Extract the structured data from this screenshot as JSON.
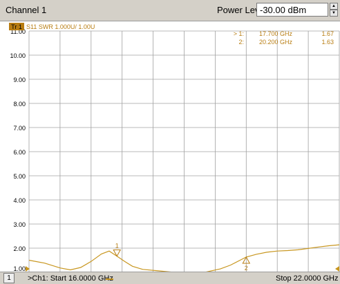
{
  "window": {
    "channel_title": "Channel 1",
    "power_level_label": "Power Level",
    "power_level_value": "-30.00 dBm"
  },
  "trace": {
    "badge": "Tr 1",
    "info": "S11 SWR 1.000U/ 1.00U",
    "color": "#c8961e"
  },
  "markers": {
    "readout": [
      {
        "id": "> 1:",
        "freq": "17.700 GHz",
        "value": "1.67"
      },
      {
        "id": "2:",
        "freq": "20.200 GHz",
        "value": "1.63"
      }
    ],
    "symbols": [
      {
        "label": "1",
        "freq_ghz": 17.7,
        "swr": 1.67,
        "pointing": "down"
      },
      {
        "label": "2",
        "freq_ghz": 20.2,
        "swr": 1.63,
        "pointing": "up"
      }
    ]
  },
  "footer": {
    "channel_number": "1",
    "start_label": ">Ch1: Start  16.0000 GHz",
    "stop_label": "Stop  22.0000 GHz"
  },
  "chart_data": {
    "type": "line",
    "title": "",
    "xlabel": "",
    "ylabel": "",
    "xlim": [
      16.0,
      22.0
    ],
    "ylim": [
      1.0,
      11.0
    ],
    "grid": true,
    "yticks": [
      "11.00",
      "10.00",
      "9.00",
      "8.00",
      "7.00",
      "6.00",
      "5.00",
      "4.00",
      "3.00",
      "2.00",
      "1.00"
    ],
    "series": [
      {
        "x": [
          16.0,
          16.3,
          16.6,
          16.8,
          17.0,
          17.2,
          17.4,
          17.55,
          17.7,
          17.85,
          18.0,
          18.2,
          18.5,
          18.8,
          19.1,
          19.4,
          19.7,
          19.9,
          20.2,
          20.4,
          20.6,
          20.8,
          21.0,
          21.2,
          21.4,
          21.6,
          21.8,
          22.0
        ],
        "y": [
          1.5,
          1.38,
          1.18,
          1.1,
          1.2,
          1.45,
          1.76,
          1.88,
          1.67,
          1.45,
          1.25,
          1.12,
          1.06,
          1.0,
          0.97,
          1.0,
          1.14,
          1.3,
          1.63,
          1.75,
          1.83,
          1.88,
          1.9,
          1.93,
          1.99,
          2.05,
          2.1,
          2.14
        ]
      }
    ]
  }
}
